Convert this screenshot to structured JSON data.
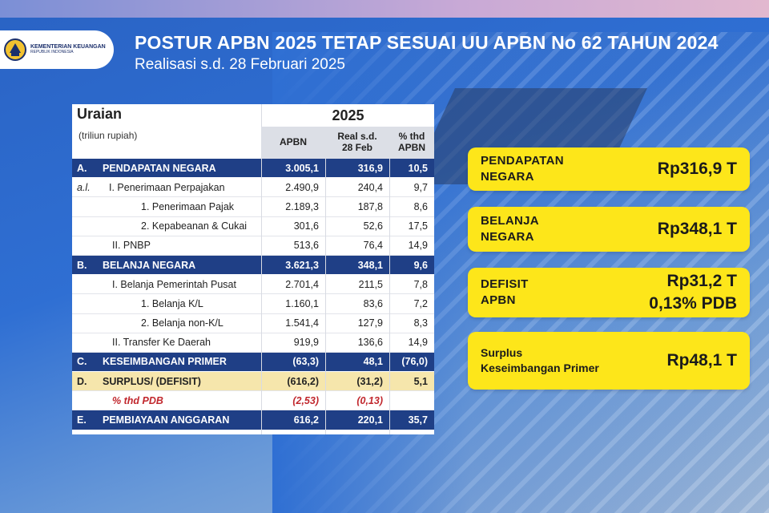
{
  "header": {
    "title": "POSTUR APBN 2025 TETAP SESUAI UU  APBN No 62 TAHUN 2024",
    "subtitle": "Realisasi s.d. 28 Februari 2025",
    "logo_line1": "KEMENTERIAN KEUANGAN",
    "logo_line2": "REPUBLIK INDONESIA"
  },
  "table": {
    "head_label": "Uraian",
    "head_unit": "(triliun rupiah)",
    "head_year": "2025",
    "col1": "APBN",
    "col2_a": "Real s.d.",
    "col2_b": "28 Feb",
    "col3_a": "% thd",
    "col3_b": "APBN",
    "rows": [
      {
        "code": "A.",
        "label": "PENDAPATAN NEGARA",
        "apbn": "3.005,1",
        "real": "316,9",
        "pct": "10,5",
        "style": "blue"
      },
      {
        "code": "a.l.",
        "label": "I. Penerimaan Perpajakan",
        "apbn": "2.490,9",
        "real": "240,4",
        "pct": "9,7",
        "style": "plain"
      },
      {
        "code": "",
        "label": "1.    Penerimaan Pajak",
        "apbn": "2.189,3",
        "real": "187,8",
        "pct": "8,6",
        "style": "plain"
      },
      {
        "code": "",
        "label": "2.    Kepabeanan & Cukai",
        "apbn": "301,6",
        "real": "52,6",
        "pct": "17,5",
        "style": "plain"
      },
      {
        "code": "",
        "label": "II. PNBP",
        "apbn": "513,6",
        "real": "76,4",
        "pct": "14,9",
        "style": "plain"
      },
      {
        "code": "B.",
        "label": "BELANJA NEGARA",
        "apbn": "3.621,3",
        "real": "348,1",
        "pct": "9,6",
        "style": "blue"
      },
      {
        "code": "",
        "label": "I. Belanja Pemerintah Pusat",
        "apbn": "2.701,4",
        "real": "211,5",
        "pct": "7,8",
        "style": "plain"
      },
      {
        "code": "",
        "label": "1.    Belanja K/L",
        "apbn": "1.160,1",
        "real": "83,6",
        "pct": "7,2",
        "style": "plain"
      },
      {
        "code": "",
        "label": "2.    Belanja non-K/L",
        "apbn": "1.541,4",
        "real": "127,9",
        "pct": "8,3",
        "style": "plain"
      },
      {
        "code": "",
        "label": "II. Transfer Ke Daerah",
        "apbn": "919,9",
        "real": "136,6",
        "pct": "14,9",
        "style": "plain"
      },
      {
        "code": "C.",
        "label": "KESEIMBANGAN PRIMER",
        "apbn": "(63,3)",
        "real": "48,1",
        "pct": "(76,0)",
        "style": "blue"
      },
      {
        "code": "D.",
        "label": "SURPLUS/ (DEFISIT)",
        "apbn": "(616,2)",
        "real": "(31,2)",
        "pct": "5,1",
        "style": "yellow"
      },
      {
        "code": "",
        "label": "% thd PDB",
        "apbn": "(2,53)",
        "real": "(0,13)",
        "pct": "",
        "style": "pdb"
      },
      {
        "code": "E.",
        "label": "PEMBIAYAAN ANGGARAN",
        "apbn": "616,2",
        "real": "220,1",
        "pct": "35,7",
        "style": "blue"
      }
    ]
  },
  "cards": {
    "pendapatan": {
      "label_a": "PENDAPATAN",
      "label_b": "NEGARA",
      "value": "Rp316,9 T"
    },
    "belanja": {
      "label_a": "BELANJA",
      "label_b": "NEGARA",
      "value": "Rp348,1 T"
    },
    "defisit": {
      "label_a": "DEFISIT",
      "label_b": "APBN",
      "value_a": "Rp31,2 T",
      "value_b": "0,13% PDB"
    },
    "surplus": {
      "label_a": "Surplus",
      "label_b": "Keseimbangan Primer",
      "value": "Rp48,1 T"
    }
  },
  "colors": {
    "header_blue": "#1f3f86",
    "highlight_yellow": "#fde61a",
    "surplus_row": "#f6e6ac",
    "pdb_red": "#c1272d"
  }
}
